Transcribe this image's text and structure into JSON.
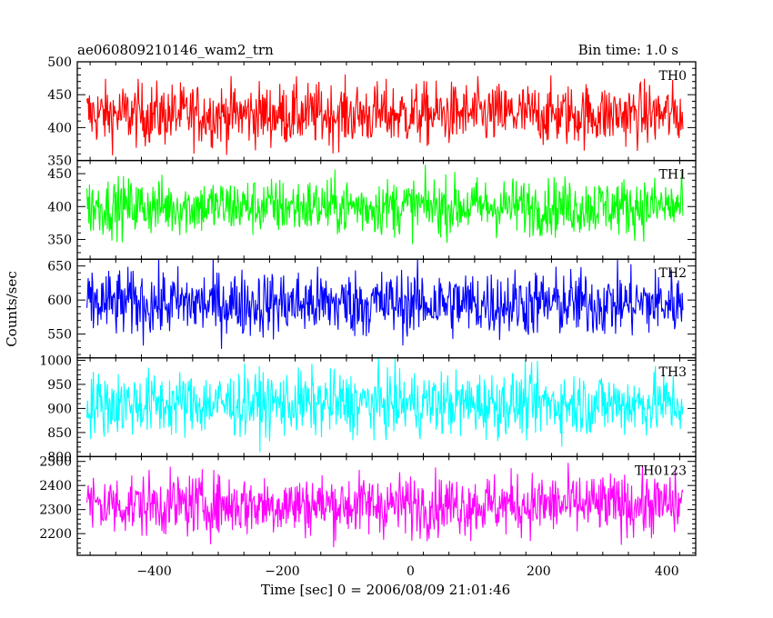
{
  "chart_data": {
    "type": "line",
    "title": "ae060809210146_wam2_trn",
    "subtitle": "Bin time: 1.0 s",
    "xlabel": "Time [sec] 0 = 2006/08/09 21:01:46",
    "ylabel": "Counts/sec",
    "xlim": [
      -520,
      445
    ],
    "x_ticks": [
      -400,
      -200,
      0,
      200,
      400
    ],
    "x_range": [
      -505,
      425
    ],
    "bin_time_s": 1.0,
    "panels": [
      {
        "name": "TH0",
        "color": "#ff0000",
        "ylim": [
          350,
          500
        ],
        "y_ticks": [
          350,
          400,
          450,
          500
        ],
        "mean": 420,
        "spread": 24
      },
      {
        "name": "TH1",
        "color": "#00ff00",
        "ylim": [
          320,
          470
        ],
        "y_ticks": [
          350,
          400,
          450
        ],
        "mean": 400,
        "spread": 22
      },
      {
        "name": "TH2",
        "color": "#0000ff",
        "ylim": [
          515,
          660
        ],
        "y_ticks": [
          550,
          600,
          650
        ],
        "mean": 595,
        "spread": 25
      },
      {
        "name": "TH3",
        "color": "#00ffff",
        "ylim": [
          800,
          1005
        ],
        "y_ticks": [
          800,
          850,
          900,
          950,
          1000
        ],
        "mean": 910,
        "spread": 34
      },
      {
        "name": "TH0123",
        "color": "#ff00ff",
        "ylim": [
          2110,
          2520
        ],
        "y_ticks": [
          2200,
          2300,
          2400,
          2500
        ],
        "mean": 2320,
        "spread": 65
      }
    ]
  }
}
